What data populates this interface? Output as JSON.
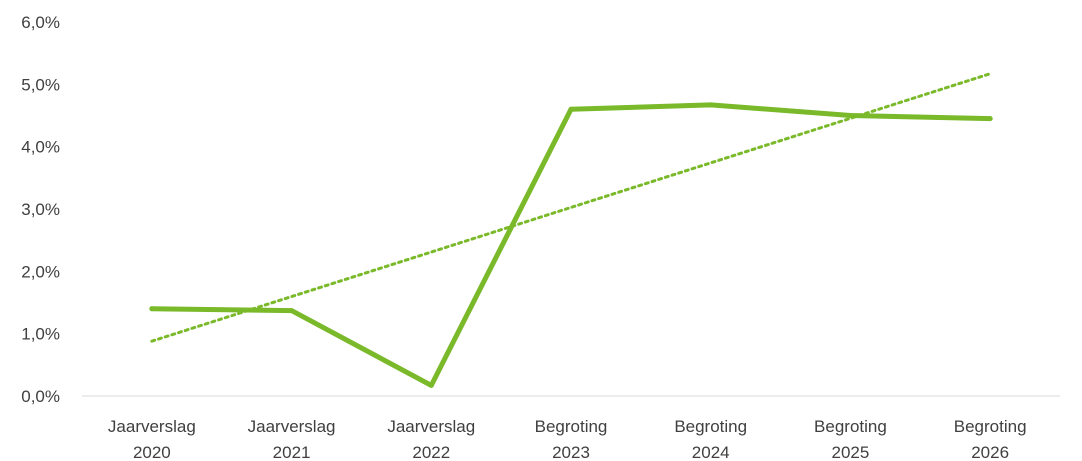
{
  "chart_data": {
    "type": "line",
    "categories": [
      [
        "Jaarverslag",
        "2020"
      ],
      [
        "Jaarverslag",
        "2021"
      ],
      [
        "Jaarverslag",
        "2022"
      ],
      [
        "Begroting",
        "2023"
      ],
      [
        "Begroting",
        "2024"
      ],
      [
        "Begroting",
        "2025"
      ],
      [
        "Begroting",
        "2026"
      ]
    ],
    "series": [
      {
        "values": [
          1.4,
          1.37,
          0.17,
          4.6,
          4.67,
          4.5,
          4.45
        ],
        "color": "#7AB929",
        "style": "solid"
      }
    ],
    "trendline": {
      "type": "linear",
      "style": "dotted",
      "color": "#7AB929",
      "start": 0.88,
      "end": 5.17
    },
    "y_ticks": [
      "0,0%",
      "1,0%",
      "2,0%",
      "3,0%",
      "4,0%",
      "5,0%",
      "6,0%"
    ],
    "ylim": [
      0,
      6
    ],
    "grid": false,
    "legend": "none"
  }
}
